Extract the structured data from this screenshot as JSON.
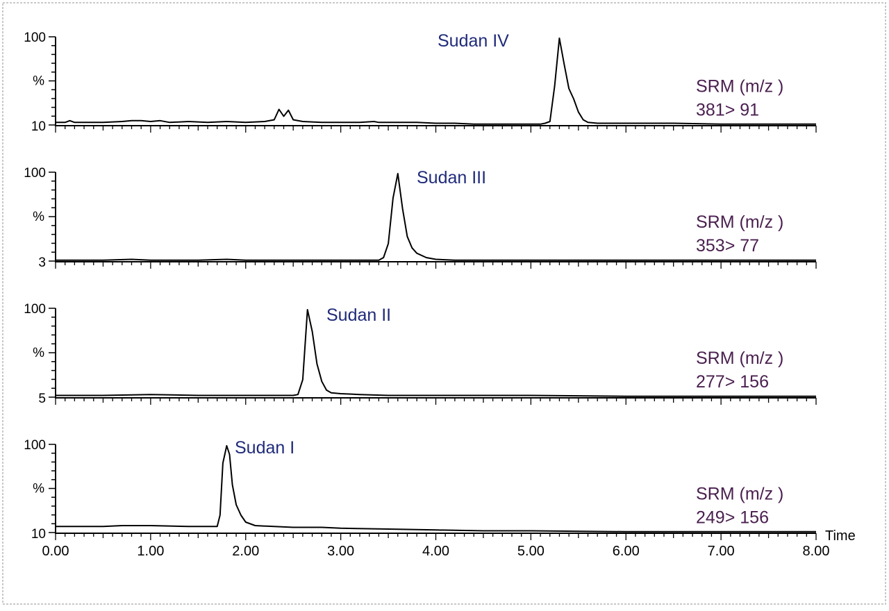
{
  "colors": {
    "trace": "#000000",
    "peak_label": "#1f2b7a",
    "srm_label": "#4a1f4f",
    "frame": "#c8c8c8"
  },
  "chart_data": [
    {
      "type": "line",
      "peak_label": "Sudan IV",
      "ylabel": "%",
      "y_ticks": [
        "100",
        "10"
      ],
      "srm": [
        "SRM   (m/z  )",
        "381> 91"
      ],
      "xlim": [
        0,
        8
      ],
      "ylim": [
        0,
        100
      ],
      "x": [
        0.0,
        0.1,
        0.15,
        0.2,
        0.5,
        0.7,
        0.8,
        0.9,
        1.0,
        1.1,
        1.2,
        1.4,
        1.6,
        1.8,
        2.0,
        2.2,
        2.3,
        2.35,
        2.4,
        2.45,
        2.5,
        2.6,
        2.8,
        3.0,
        3.2,
        3.35,
        3.4,
        3.6,
        3.8,
        4.0,
        4.2,
        4.4,
        4.6,
        4.8,
        5.0,
        5.1,
        5.15,
        5.2,
        5.25,
        5.3,
        5.35,
        5.4,
        5.45,
        5.5,
        5.55,
        5.6,
        5.7,
        5.8,
        6.0,
        6.5,
        7.0,
        7.5,
        8.0
      ],
      "y": [
        3,
        3,
        5,
        3,
        3,
        4,
        5,
        5,
        4,
        5,
        3,
        4,
        3,
        4,
        3,
        4,
        6,
        18,
        10,
        17,
        6,
        4,
        3,
        3,
        3,
        4,
        3,
        3,
        3,
        2,
        2,
        1,
        1,
        1,
        1,
        1,
        2,
        4,
        45,
        100,
        70,
        42,
        30,
        15,
        6,
        3,
        2,
        2,
        2,
        2,
        1,
        1,
        1
      ]
    },
    {
      "type": "line",
      "peak_label": "Sudan III",
      "ylabel": "%",
      "y_ticks": [
        "100",
        "3"
      ],
      "srm": [
        "SRM   (m/z  )",
        "353> 77"
      ],
      "xlim": [
        0,
        8
      ],
      "ylim": [
        0,
        100
      ],
      "x": [
        0.0,
        0.5,
        0.8,
        1.0,
        1.5,
        1.8,
        2.0,
        2.5,
        3.0,
        3.4,
        3.45,
        3.5,
        3.55,
        3.6,
        3.65,
        3.7,
        3.75,
        3.8,
        3.9,
        4.0,
        4.2,
        4.5,
        5.0,
        6.0,
        7.0,
        8.0
      ],
      "y": [
        1,
        1,
        2,
        1,
        1,
        2,
        1,
        1,
        1,
        1,
        4,
        20,
        72,
        100,
        60,
        28,
        15,
        9,
        4,
        2,
        1,
        1,
        1,
        1,
        1,
        1
      ]
    },
    {
      "type": "line",
      "peak_label": "Sudan II",
      "ylabel": "%",
      "y_ticks": [
        "100",
        "5"
      ],
      "srm": [
        "SRM   (m/z  )",
        "277> 156"
      ],
      "xlim": [
        0,
        8
      ],
      "ylim": [
        0,
        100
      ],
      "x": [
        0.0,
        0.5,
        1.0,
        1.5,
        2.0,
        2.5,
        2.55,
        2.6,
        2.65,
        2.7,
        2.75,
        2.8,
        2.85,
        2.9,
        3.0,
        3.2,
        3.5,
        4.0,
        5.0,
        6.0,
        7.0,
        8.0
      ],
      "y": [
        2,
        2,
        3,
        2,
        2,
        2,
        3,
        20,
        100,
        75,
        38,
        18,
        8,
        5,
        4,
        3,
        2,
        2,
        2,
        1,
        1,
        1
      ]
    },
    {
      "type": "line",
      "peak_label": "Sudan I",
      "ylabel": "%",
      "y_ticks": [
        "100",
        "10"
      ],
      "srm": [
        "SRM   (m/z  )",
        "249> 156"
      ],
      "xlim": [
        0,
        8
      ],
      "ylim": [
        0,
        100
      ],
      "xlabel": "Time",
      "x_ticks": [
        "0.00",
        "1.00",
        "2.00",
        "3.00",
        "4.00",
        "5.00",
        "6.00",
        "7.00",
        "8.00"
      ],
      "x": [
        0.0,
        0.5,
        0.7,
        1.0,
        1.4,
        1.7,
        1.73,
        1.76,
        1.8,
        1.83,
        1.86,
        1.9,
        1.95,
        2.0,
        2.1,
        2.3,
        2.5,
        2.8,
        3.0,
        3.5,
        4.0,
        4.5,
        5.0,
        6.0,
        7.0,
        8.0
      ],
      "y": [
        7,
        7,
        8,
        8,
        7,
        7,
        20,
        80,
        100,
        90,
        55,
        32,
        20,
        12,
        8,
        7,
        6,
        6,
        5,
        4,
        3,
        2,
        2,
        1,
        1,
        1
      ]
    }
  ]
}
